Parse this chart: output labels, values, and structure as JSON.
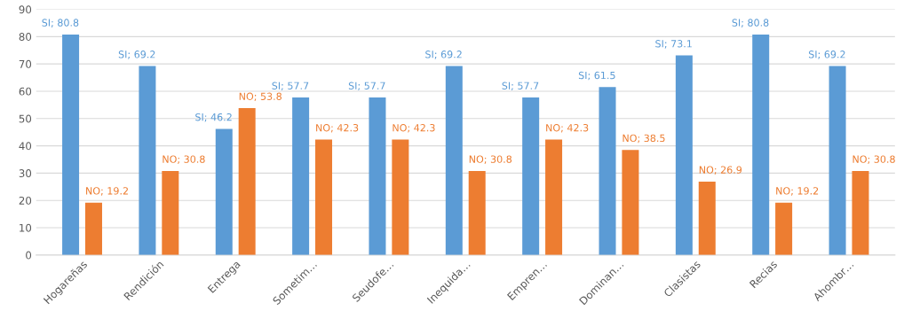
{
  "chart_data": {
    "type": "bar",
    "categories": [
      "Hogareñas",
      "Rendición",
      "Entrega",
      "Sometim…",
      "Seudofe…",
      "Inequida…",
      "Empren…",
      "Dominan…",
      "Clasistas",
      "Recias",
      "Ahombr…"
    ],
    "series": [
      {
        "color": "#5b9bd5",
        "values": [
          80.8,
          69.2,
          46.2,
          57.7,
          57.7,
          69.2,
          57.7,
          61.5,
          73.1,
          80.8,
          69.2
        ],
        "value_labels": [
          "SI; 80.8",
          "SI; 69.2",
          "SI; 46.2",
          "SI; 57.7",
          "SI; 57.7",
          "SI; 69.2",
          "SI; 57.7",
          "SI; 61.5",
          "SI; 73.1",
          "SI; 80.8",
          "SI; 69.2"
        ]
      },
      {
        "color": "#ed7d31",
        "values": [
          19.2,
          30.8,
          53.8,
          42.3,
          42.3,
          30.8,
          42.3,
          38.5,
          26.9,
          19.2,
          30.8
        ],
        "value_labels": [
          "NO; 19.2",
          "NO; 30.8",
          "NO; 53.8",
          "NO; 42.3",
          "NO; 42.3",
          "NO; 30.8",
          "NO; 42.3",
          "NO; 38.5",
          "NO; 26.9",
          "NO; 19.2",
          "NO; 30.8"
        ]
      }
    ],
    "ylim": [
      0,
      90
    ],
    "yticks": [
      0,
      10,
      20,
      30,
      40,
      50,
      60,
      70,
      80,
      90
    ],
    "grid": "y",
    "legend": false
  }
}
